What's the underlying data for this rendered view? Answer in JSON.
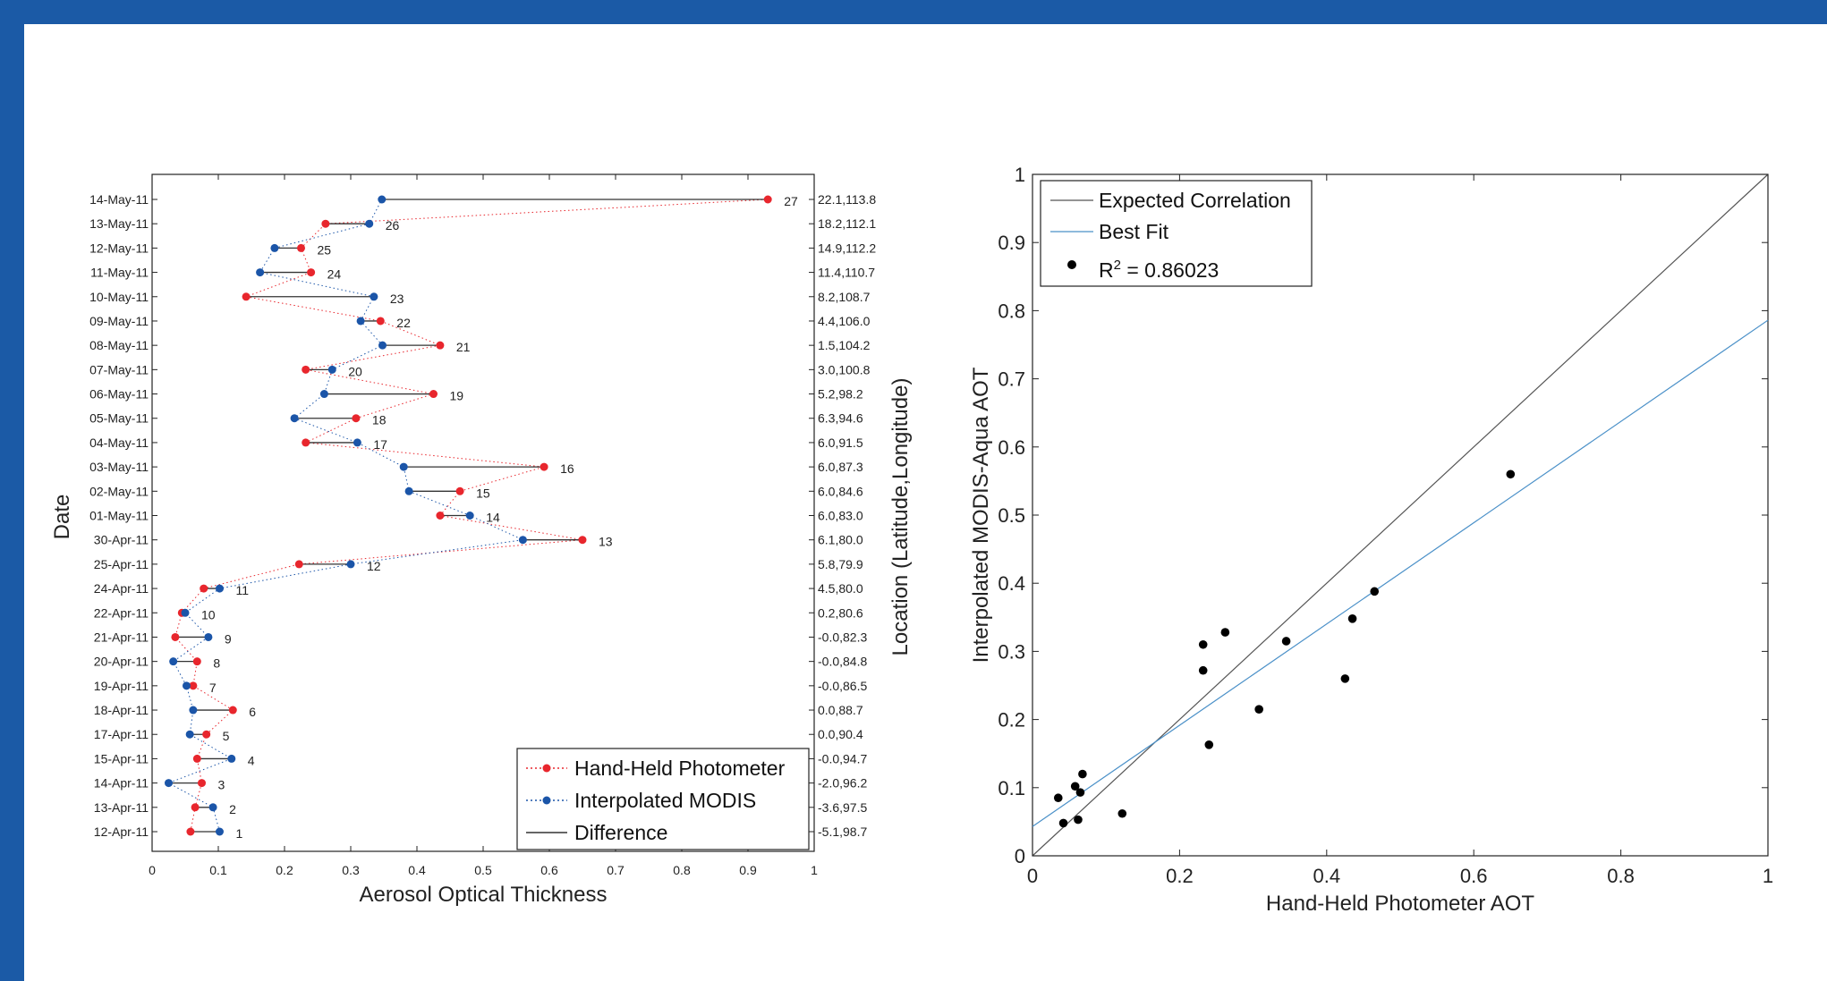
{
  "colors": {
    "border": "#1b5aa6",
    "handheld": "#e8262d",
    "modis": "#1b55a8",
    "difference": "#333333",
    "expected": "#555555",
    "best_fit": "#4a90c8",
    "points": "#000000"
  },
  "chart_data": [
    {
      "type": "line",
      "subtype": "dumbbell",
      "xlabel": "Aerosol Optical Thickness",
      "ylabel": "Date",
      "ylabel_right": "Location (Latitude,Longitude)",
      "xlim": [
        0,
        1
      ],
      "xticks": [
        "0",
        "0.1",
        "0.2",
        "0.3",
        "0.4",
        "0.5",
        "0.6",
        "0.7",
        "0.8",
        "0.9",
        "1"
      ],
      "legend_position": "bottom-right",
      "legend": [
        {
          "label": "Hand-Held Photometer",
          "style": "dotted red line with dot"
        },
        {
          "label": "Interpolated MODIS",
          "style": "dotted blue line with dot"
        },
        {
          "label": "Difference",
          "style": "solid black line"
        }
      ],
      "series": [
        {
          "name": "Hand-Held Photometer",
          "values": [
            0.058,
            0.065,
            0.075,
            0.068,
            0.082,
            0.122,
            0.062,
            0.068,
            0.035,
            0.045,
            0.078,
            0.222,
            0.65,
            0.435,
            0.465,
            0.592,
            0.232,
            0.308,
            0.425,
            0.232,
            0.435,
            0.345,
            0.142,
            0.24,
            0.225,
            0.262,
            0.93
          ]
        },
        {
          "name": "Interpolated MODIS",
          "values": [
            0.102,
            0.092,
            0.025,
            0.12,
            0.057,
            0.062,
            0.052,
            0.032,
            0.085,
            0.05,
            0.102,
            0.3,
            0.56,
            0.48,
            0.388,
            0.38,
            0.31,
            0.215,
            0.26,
            0.272,
            0.348,
            0.315,
            0.335,
            0.163,
            0.185,
            0.328,
            0.347
          ]
        }
      ],
      "rows": [
        {
          "date": "12-Apr-11",
          "id": "1",
          "location": "-5.1,98.7"
        },
        {
          "date": "13-Apr-11",
          "id": "2",
          "location": "-3.6,97.5"
        },
        {
          "date": "14-Apr-11",
          "id": "3",
          "location": "-2.0,96.2"
        },
        {
          "date": "15-Apr-11",
          "id": "4",
          "location": "-0.0,94.7"
        },
        {
          "date": "17-Apr-11",
          "id": "5",
          "location": "0.0,90.4"
        },
        {
          "date": "18-Apr-11",
          "id": "6",
          "location": "0.0,88.7"
        },
        {
          "date": "19-Apr-11",
          "id": "7",
          "location": "-0.0,86.5"
        },
        {
          "date": "20-Apr-11",
          "id": "8",
          "location": "-0.0,84.8"
        },
        {
          "date": "21-Apr-11",
          "id": "9",
          "location": "-0.0,82.3"
        },
        {
          "date": "22-Apr-11",
          "id": "10",
          "location": "0.2,80.6"
        },
        {
          "date": "24-Apr-11",
          "id": "11",
          "location": "4.5,80.0"
        },
        {
          "date": "25-Apr-11",
          "id": "12",
          "location": "5.8,79.9"
        },
        {
          "date": "30-Apr-11",
          "id": "13",
          "location": "6.1,80.0"
        },
        {
          "date": "01-May-11",
          "id": "14",
          "location": "6.0,83.0"
        },
        {
          "date": "02-May-11",
          "id": "15",
          "location": "6.0,84.6"
        },
        {
          "date": "03-May-11",
          "id": "16",
          "location": "6.0,87.3"
        },
        {
          "date": "04-May-11",
          "id": "17",
          "location": "6.0,91.5"
        },
        {
          "date": "05-May-11",
          "id": "18",
          "location": "6.3,94.6"
        },
        {
          "date": "06-May-11",
          "id": "19",
          "location": "5.2,98.2"
        },
        {
          "date": "07-May-11",
          "id": "20",
          "location": "3.0,100.8"
        },
        {
          "date": "08-May-11",
          "id": "21",
          "location": "1.5,104.2"
        },
        {
          "date": "09-May-11",
          "id": "22",
          "location": "4.4,106.0"
        },
        {
          "date": "10-May-11",
          "id": "23",
          "location": "8.2,108.7"
        },
        {
          "date": "11-May-11",
          "id": "24",
          "location": "11.4,110.7"
        },
        {
          "date": "12-May-11",
          "id": "25",
          "location": "14.9,112.2"
        },
        {
          "date": "13-May-11",
          "id": "26",
          "location": "18.2,112.1"
        },
        {
          "date": "14-May-11",
          "id": "27",
          "location": "22.1,113.8"
        }
      ]
    },
    {
      "type": "scatter",
      "xlabel": "Hand-Held Photometer AOT",
      "ylabel": "Interpolated MODIS-Aqua AOT",
      "xlim": [
        0,
        1
      ],
      "ylim": [
        0,
        1
      ],
      "xticks": [
        "0",
        "0.2",
        "0.4",
        "0.6",
        "0.8",
        "1"
      ],
      "yticks": [
        "0",
        "0.1",
        "0.2",
        "0.3",
        "0.4",
        "0.5",
        "0.6",
        "0.7",
        "0.8",
        "0.9",
        "1"
      ],
      "legend_position": "top-left",
      "legend": [
        {
          "label": "Expected Correlation",
          "style": "solid dark line"
        },
        {
          "label": "Best Fit",
          "style": "solid light blue line"
        },
        {
          "label_prefix": "R",
          "label_sup": "2",
          "label_suffix": " = 0.86023",
          "style": "black dot"
        }
      ],
      "lines": [
        {
          "name": "Expected Correlation",
          "x": [
            0,
            1
          ],
          "y": [
            0,
            1
          ]
        },
        {
          "name": "Best Fit",
          "x": [
            0,
            1
          ],
          "y": [
            0.043,
            0.786
          ]
        }
      ],
      "points": [
        {
          "x": 0.035,
          "y": 0.085
        },
        {
          "x": 0.042,
          "y": 0.048
        },
        {
          "x": 0.058,
          "y": 0.102
        },
        {
          "x": 0.062,
          "y": 0.053
        },
        {
          "x": 0.065,
          "y": 0.093
        },
        {
          "x": 0.068,
          "y": 0.12
        },
        {
          "x": 0.122,
          "y": 0.062
        },
        {
          "x": 0.232,
          "y": 0.31
        },
        {
          "x": 0.232,
          "y": 0.272
        },
        {
          "x": 0.24,
          "y": 0.163
        },
        {
          "x": 0.262,
          "y": 0.328
        },
        {
          "x": 0.308,
          "y": 0.215
        },
        {
          "x": 0.345,
          "y": 0.315
        },
        {
          "x": 0.425,
          "y": 0.26
        },
        {
          "x": 0.435,
          "y": 0.348
        },
        {
          "x": 0.465,
          "y": 0.388
        },
        {
          "x": 0.65,
          "y": 0.56
        }
      ]
    }
  ]
}
